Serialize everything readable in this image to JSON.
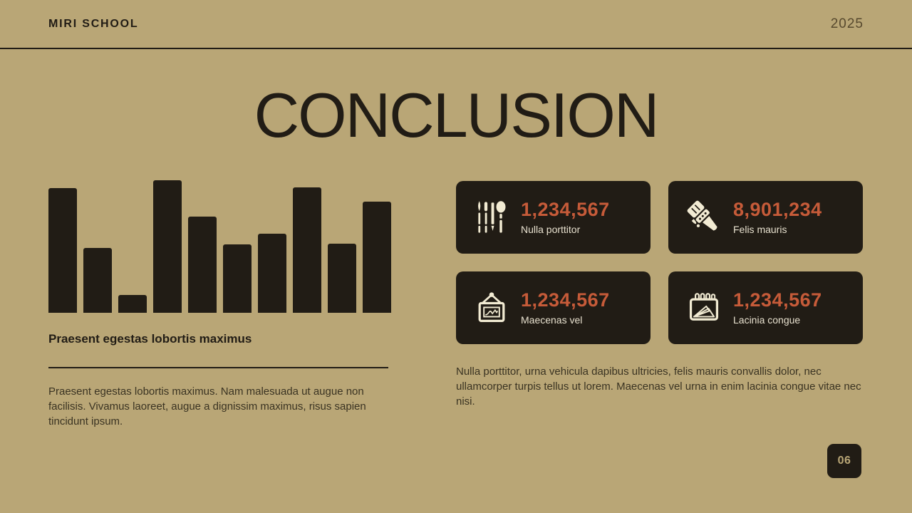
{
  "header": {
    "brand": "MIRI SCHOOL",
    "year": "2025"
  },
  "title": "CONCLUSION",
  "chart_data": {
    "type": "bar",
    "categories": [
      "",
      "",
      "",
      "",
      "",
      "",
      "",
      "",
      "",
      ""
    ],
    "values": [
      175,
      91,
      25,
      186,
      135,
      96,
      111,
      176,
      97,
      156
    ],
    "ymax": 186,
    "title": "",
    "xlabel": "",
    "ylabel": "",
    "ylim": [
      0,
      186
    ],
    "grid": false,
    "legend": false,
    "bar_color": "#211c15"
  },
  "left": {
    "caption": "Praesent egestas lobortis maximus",
    "paragraph": "Praesent egestas lobortis maximus. Nam malesuada ut augue non facilisis. Vivamus laoreet, augue a dignissim maximus, risus sapien tincidunt ipsum."
  },
  "stats": {
    "cards": [
      {
        "icon": "brush-set-icon",
        "value": "1,234,567",
        "label": "Nulla porttitor"
      },
      {
        "icon": "paintbrush-icon",
        "value": "8,901,234",
        "label": "Felis mauris"
      },
      {
        "icon": "picture-frame-icon",
        "value": "1,234,567",
        "label": "Maecenas vel"
      },
      {
        "icon": "notepad-icon",
        "value": "1,234,567",
        "label": "Lacinia congue"
      }
    ],
    "paragraph": "Nulla porttitor, urna vehicula dapibus ultricies, felis mauris convallis dolor, nec ullamcorper turpis tellus ut lorem. Maecenas vel urna in enim lacinia congue vitae nec nisi."
  },
  "footer": {
    "page_number": "06"
  },
  "colors": {
    "background": "#b9a676",
    "dark": "#211c15",
    "accent_orange": "#c65b39",
    "icon_cream": "#f2ebd3"
  }
}
